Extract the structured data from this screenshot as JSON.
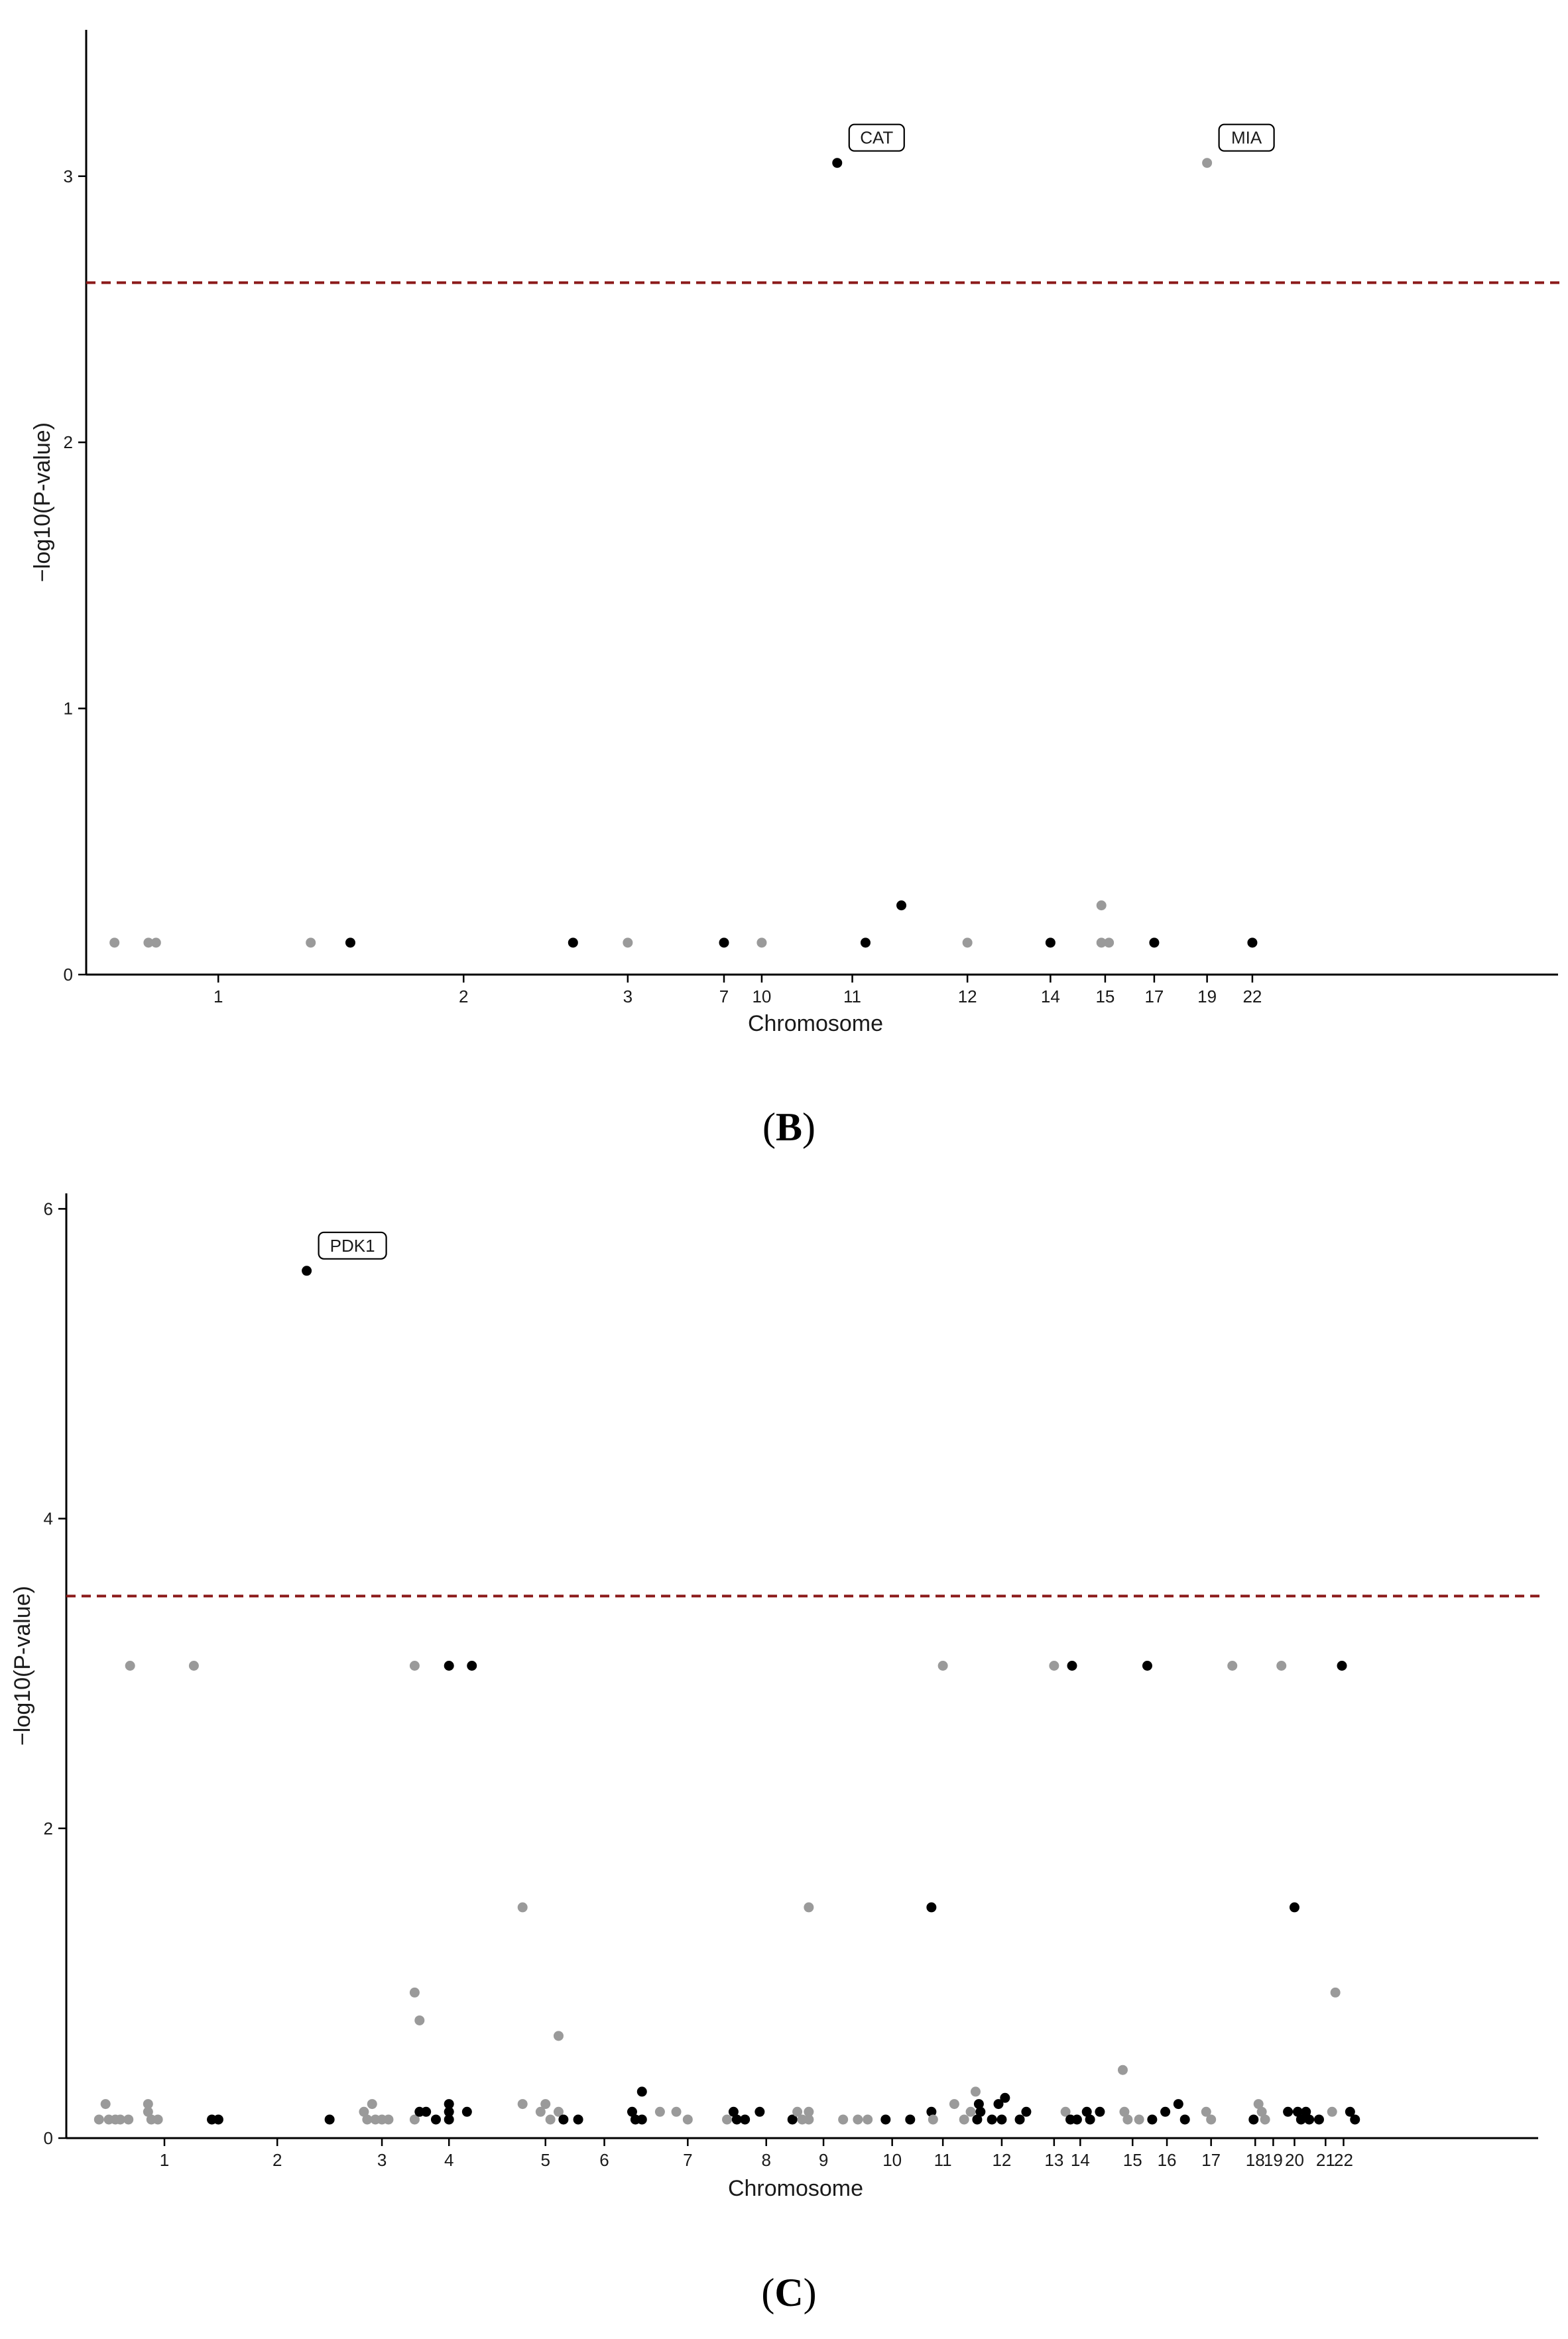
{
  "chart_data": [
    {
      "type": "scatter",
      "panel_label_letter": "B",
      "xlabel": "Chromosome",
      "ylabel": "−log10(P-value)",
      "ylim": [
        0,
        3.55
      ],
      "yticks": [
        0,
        1,
        2,
        3
      ],
      "threshold": 2.6,
      "colors": {
        "odd": "#9a9a9a",
        "even": "#000000",
        "threshold": "#8b1a1a"
      },
      "xticks": [
        {
          "label": "1",
          "x": 70
        },
        {
          "label": "2",
          "x": 200
        },
        {
          "label": "3",
          "x": 287
        },
        {
          "label": "7",
          "x": 338
        },
        {
          "label": "10",
          "x": 358
        },
        {
          "label": "11",
          "x": 406
        },
        {
          "label": "12",
          "x": 467
        },
        {
          "label": "14",
          "x": 511
        },
        {
          "label": "15",
          "x": 540
        },
        {
          "label": "17",
          "x": 566
        },
        {
          "label": "19",
          "x": 594
        },
        {
          "label": "22",
          "x": 618
        }
      ],
      "points": [
        {
          "x": 15,
          "y": 0.12,
          "c": "odd"
        },
        {
          "x": 33,
          "y": 0.12,
          "c": "odd"
        },
        {
          "x": 37,
          "y": 0.12,
          "c": "odd"
        },
        {
          "x": 119,
          "y": 0.12,
          "c": "odd"
        },
        {
          "x": 140,
          "y": 0.12,
          "c": "even"
        },
        {
          "x": 258,
          "y": 0.12,
          "c": "even"
        },
        {
          "x": 287,
          "y": 0.12,
          "c": "odd"
        },
        {
          "x": 338,
          "y": 0.12,
          "c": "even"
        },
        {
          "x": 358,
          "y": 0.12,
          "c": "odd"
        },
        {
          "x": 398,
          "y": 3.05,
          "c": "even",
          "label": "CAT"
        },
        {
          "x": 413,
          "y": 0.12,
          "c": "even"
        },
        {
          "x": 432,
          "y": 0.26,
          "c": "even"
        },
        {
          "x": 467,
          "y": 0.12,
          "c": "odd"
        },
        {
          "x": 511,
          "y": 0.12,
          "c": "even"
        },
        {
          "x": 538,
          "y": 0.26,
          "c": "odd"
        },
        {
          "x": 538,
          "y": 0.12,
          "c": "odd"
        },
        {
          "x": 542,
          "y": 0.12,
          "c": "odd"
        },
        {
          "x": 566,
          "y": 0.12,
          "c": "even"
        },
        {
          "x": 594,
          "y": 3.05,
          "c": "odd",
          "label": "MIA"
        },
        {
          "x": 618,
          "y": 0.12,
          "c": "even"
        }
      ]
    },
    {
      "type": "scatter",
      "panel_label_letter": "C",
      "xlabel": "Chromosome",
      "ylabel": "−log10(P-value)",
      "ylim": [
        0,
        6.1
      ],
      "yticks": [
        0,
        2,
        4,
        6
      ],
      "threshold": 3.5,
      "colors": {
        "odd": "#9a9a9a",
        "even": "#000000",
        "threshold": "#8b1a1a"
      },
      "xticks": [
        {
          "label": "1",
          "x": 60
        },
        {
          "label": "2",
          "x": 129
        },
        {
          "label": "3",
          "x": 193
        },
        {
          "label": "4",
          "x": 234
        },
        {
          "label": "5",
          "x": 293
        },
        {
          "label": "6",
          "x": 329
        },
        {
          "label": "7",
          "x": 380
        },
        {
          "label": "8",
          "x": 428
        },
        {
          "label": "9",
          "x": 463
        },
        {
          "label": "10",
          "x": 505
        },
        {
          "label": "11",
          "x": 536
        },
        {
          "label": "12",
          "x": 572
        },
        {
          "label": "13",
          "x": 604
        },
        {
          "label": "14",
          "x": 620
        },
        {
          "label": "15",
          "x": 652
        },
        {
          "label": "16",
          "x": 673
        },
        {
          "label": "17",
          "x": 700
        },
        {
          "label": "18",
          "x": 727
        },
        {
          "label": "19",
          "x": 738
        },
        {
          "label": "20",
          "x": 751
        },
        {
          "label": "21",
          "x": 770
        },
        {
          "label": "22",
          "x": 781
        }
      ],
      "points": [
        {
          "x": 20,
          "y": 0.12,
          "c": "odd"
        },
        {
          "x": 24,
          "y": 0.22,
          "c": "odd"
        },
        {
          "x": 26,
          "y": 0.12,
          "c": "odd"
        },
        {
          "x": 30,
          "y": 0.12,
          "c": "odd"
        },
        {
          "x": 33,
          "y": 0.12,
          "c": "odd"
        },
        {
          "x": 38,
          "y": 0.12,
          "c": "odd"
        },
        {
          "x": 39,
          "y": 3.05,
          "c": "odd"
        },
        {
          "x": 50,
          "y": 0.22,
          "c": "odd"
        },
        {
          "x": 50,
          "y": 0.17,
          "c": "odd"
        },
        {
          "x": 52,
          "y": 0.12,
          "c": "odd"
        },
        {
          "x": 56,
          "y": 0.12,
          "c": "odd"
        },
        {
          "x": 78,
          "y": 3.05,
          "c": "odd"
        },
        {
          "x": 89,
          "y": 0.12,
          "c": "even"
        },
        {
          "x": 93,
          "y": 0.12,
          "c": "even"
        },
        {
          "x": 147,
          "y": 5.6,
          "c": "even",
          "label": "PDK1"
        },
        {
          "x": 161,
          "y": 0.12,
          "c": "even"
        },
        {
          "x": 182,
          "y": 0.17,
          "c": "odd"
        },
        {
          "x": 184,
          "y": 0.12,
          "c": "odd"
        },
        {
          "x": 187,
          "y": 0.22,
          "c": "odd"
        },
        {
          "x": 189,
          "y": 0.12,
          "c": "odd"
        },
        {
          "x": 193,
          "y": 0.12,
          "c": "odd"
        },
        {
          "x": 197,
          "y": 0.12,
          "c": "odd"
        },
        {
          "x": 213,
          "y": 3.05,
          "c": "odd"
        },
        {
          "x": 213,
          "y": 0.94,
          "c": "odd"
        },
        {
          "x": 216,
          "y": 0.76,
          "c": "odd"
        },
        {
          "x": 213,
          "y": 0.12,
          "c": "odd"
        },
        {
          "x": 216,
          "y": 0.17,
          "c": "even"
        },
        {
          "x": 220,
          "y": 0.17,
          "c": "even"
        },
        {
          "x": 226,
          "y": 0.12,
          "c": "even"
        },
        {
          "x": 234,
          "y": 0.22,
          "c": "even"
        },
        {
          "x": 234,
          "y": 0.17,
          "c": "even"
        },
        {
          "x": 234,
          "y": 0.12,
          "c": "even"
        },
        {
          "x": 234,
          "y": 3.05,
          "c": "even"
        },
        {
          "x": 248,
          "y": 3.05,
          "c": "even"
        },
        {
          "x": 245,
          "y": 0.17,
          "c": "even"
        },
        {
          "x": 279,
          "y": 1.49,
          "c": "odd"
        },
        {
          "x": 279,
          "y": 0.22,
          "c": "odd"
        },
        {
          "x": 290,
          "y": 0.17,
          "c": "odd"
        },
        {
          "x": 293,
          "y": 0.22,
          "c": "odd"
        },
        {
          "x": 296,
          "y": 0.12,
          "c": "odd"
        },
        {
          "x": 301,
          "y": 0.17,
          "c": "odd"
        },
        {
          "x": 301,
          "y": 0.66,
          "c": "odd"
        },
        {
          "x": 304,
          "y": 0.12,
          "c": "even"
        },
        {
          "x": 313,
          "y": 0.12,
          "c": "even"
        },
        {
          "x": 346,
          "y": 0.17,
          "c": "even"
        },
        {
          "x": 348,
          "y": 0.12,
          "c": "even"
        },
        {
          "x": 352,
          "y": 0.12,
          "c": "even"
        },
        {
          "x": 352,
          "y": 0.3,
          "c": "even"
        },
        {
          "x": 363,
          "y": 0.17,
          "c": "odd"
        },
        {
          "x": 373,
          "y": 0.17,
          "c": "odd"
        },
        {
          "x": 380,
          "y": 0.12,
          "c": "odd"
        },
        {
          "x": 404,
          "y": 0.12,
          "c": "odd"
        },
        {
          "x": 408,
          "y": 0.17,
          "c": "even"
        },
        {
          "x": 410,
          "y": 0.12,
          "c": "even"
        },
        {
          "x": 415,
          "y": 0.12,
          "c": "even"
        },
        {
          "x": 424,
          "y": 0.17,
          "c": "even"
        },
        {
          "x": 444,
          "y": 0.12,
          "c": "even"
        },
        {
          "x": 447,
          "y": 0.17,
          "c": "odd"
        },
        {
          "x": 450,
          "y": 0.12,
          "c": "odd"
        },
        {
          "x": 454,
          "y": 0.17,
          "c": "odd"
        },
        {
          "x": 454,
          "y": 1.49,
          "c": "odd"
        },
        {
          "x": 454,
          "y": 0.12,
          "c": "odd"
        },
        {
          "x": 475,
          "y": 0.12,
          "c": "odd"
        },
        {
          "x": 484,
          "y": 0.12,
          "c": "odd"
        },
        {
          "x": 490,
          "y": 0.12,
          "c": "odd"
        },
        {
          "x": 501,
          "y": 0.12,
          "c": "even"
        },
        {
          "x": 516,
          "y": 0.12,
          "c": "even"
        },
        {
          "x": 529,
          "y": 1.49,
          "c": "even"
        },
        {
          "x": 529,
          "y": 0.17,
          "c": "even"
        },
        {
          "x": 530,
          "y": 0.12,
          "c": "odd"
        },
        {
          "x": 536,
          "y": 3.05,
          "c": "odd"
        },
        {
          "x": 543,
          "y": 0.22,
          "c": "odd"
        },
        {
          "x": 549,
          "y": 0.12,
          "c": "odd"
        },
        {
          "x": 553,
          "y": 0.17,
          "c": "odd"
        },
        {
          "x": 556,
          "y": 0.3,
          "c": "odd"
        },
        {
          "x": 557,
          "y": 0.12,
          "c": "even"
        },
        {
          "x": 558,
          "y": 0.22,
          "c": "even"
        },
        {
          "x": 559,
          "y": 0.17,
          "c": "even"
        },
        {
          "x": 566,
          "y": 0.12,
          "c": "even"
        },
        {
          "x": 570,
          "y": 0.22,
          "c": "even"
        },
        {
          "x": 572,
          "y": 0.12,
          "c": "even"
        },
        {
          "x": 574,
          "y": 0.26,
          "c": "even"
        },
        {
          "x": 583,
          "y": 0.12,
          "c": "even"
        },
        {
          "x": 587,
          "y": 0.17,
          "c": "even"
        },
        {
          "x": 604,
          "y": 3.05,
          "c": "odd"
        },
        {
          "x": 611,
          "y": 0.17,
          "c": "odd"
        },
        {
          "x": 615,
          "y": 3.05,
          "c": "even"
        },
        {
          "x": 614,
          "y": 0.12,
          "c": "even"
        },
        {
          "x": 618,
          "y": 0.12,
          "c": "even"
        },
        {
          "x": 624,
          "y": 0.17,
          "c": "even"
        },
        {
          "x": 626,
          "y": 0.12,
          "c": "even"
        },
        {
          "x": 632,
          "y": 0.17,
          "c": "even"
        },
        {
          "x": 646,
          "y": 0.44,
          "c": "odd"
        },
        {
          "x": 647,
          "y": 0.17,
          "c": "odd"
        },
        {
          "x": 649,
          "y": 0.12,
          "c": "odd"
        },
        {
          "x": 656,
          "y": 0.12,
          "c": "odd"
        },
        {
          "x": 661,
          "y": 3.05,
          "c": "even"
        },
        {
          "x": 664,
          "y": 0.12,
          "c": "even"
        },
        {
          "x": 672,
          "y": 0.17,
          "c": "even"
        },
        {
          "x": 680,
          "y": 0.22,
          "c": "even"
        },
        {
          "x": 684,
          "y": 0.12,
          "c": "even"
        },
        {
          "x": 697,
          "y": 0.17,
          "c": "odd"
        },
        {
          "x": 700,
          "y": 0.12,
          "c": "odd"
        },
        {
          "x": 713,
          "y": 3.05,
          "c": "odd"
        },
        {
          "x": 726,
          "y": 0.12,
          "c": "even"
        },
        {
          "x": 729,
          "y": 0.22,
          "c": "odd"
        },
        {
          "x": 731,
          "y": 0.17,
          "c": "odd"
        },
        {
          "x": 733,
          "y": 0.12,
          "c": "odd"
        },
        {
          "x": 743,
          "y": 3.05,
          "c": "odd"
        },
        {
          "x": 747,
          "y": 0.17,
          "c": "even"
        },
        {
          "x": 751,
          "y": 1.49,
          "c": "even"
        },
        {
          "x": 753,
          "y": 0.17,
          "c": "even"
        },
        {
          "x": 755,
          "y": 0.12,
          "c": "even"
        },
        {
          "x": 758,
          "y": 0.17,
          "c": "even"
        },
        {
          "x": 760,
          "y": 0.12,
          "c": "even"
        },
        {
          "x": 766,
          "y": 0.12,
          "c": "even"
        },
        {
          "x": 774,
          "y": 0.17,
          "c": "odd"
        },
        {
          "x": 776,
          "y": 0.94,
          "c": "odd"
        },
        {
          "x": 780,
          "y": 3.05,
          "c": "even"
        },
        {
          "x": 785,
          "y": 0.17,
          "c": "even"
        },
        {
          "x": 788,
          "y": 0.12,
          "c": "even"
        }
      ]
    }
  ]
}
